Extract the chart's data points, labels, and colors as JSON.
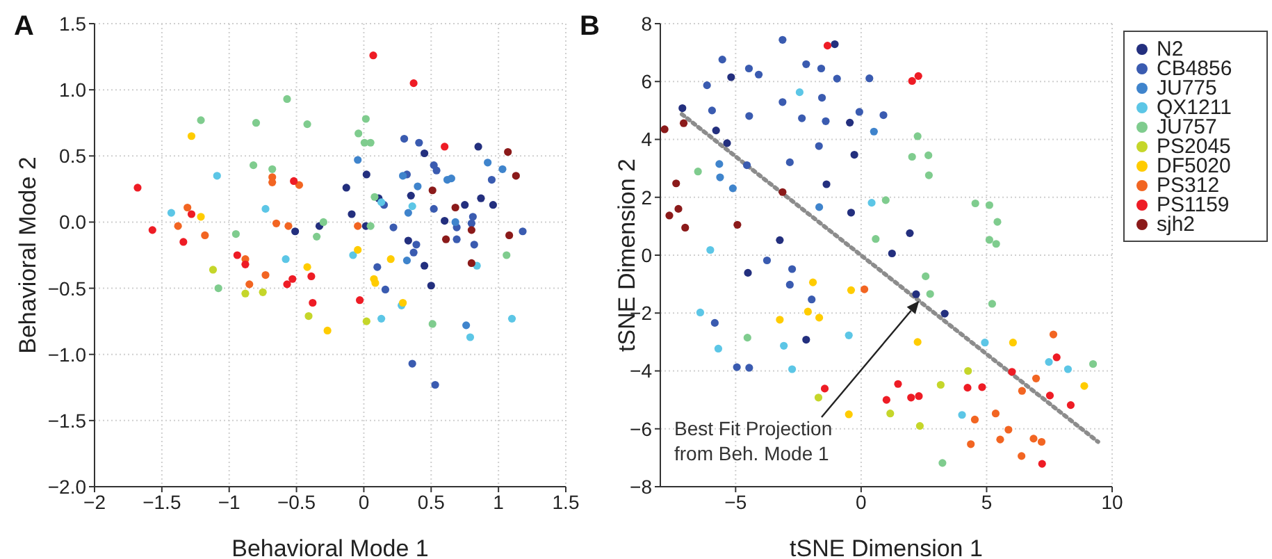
{
  "chart_data": [
    {
      "type": "scatter",
      "title": "A",
      "xlabel": "Behavioral Mode 1",
      "ylabel": "Behavioral Mode 2",
      "xlim": [
        -2,
        1.5
      ],
      "ylim": [
        -2,
        1.5
      ],
      "xticks": [
        {
          "value": -2,
          "label": "−2"
        },
        {
          "value": -1.5,
          "label": "−1.5"
        },
        {
          "value": -1,
          "label": "−1"
        },
        {
          "value": -0.5,
          "label": "−0.5"
        },
        0,
        0.5,
        1,
        1.5
      ],
      "yticks": [
        {
          "value": -2,
          "label": "−2.0"
        },
        {
          "value": -1.5,
          "label": "−1.5"
        },
        {
          "value": -1,
          "label": "−1.0"
        },
        {
          "value": -0.5,
          "label": "−0.5"
        },
        {
          "value": 0,
          "label": "0.0"
        },
        0.5,
        {
          "value": 1,
          "label": "1.0"
        },
        1.5
      ],
      "grid": true,
      "marker": "circle",
      "series": [
        {
          "color": "#232f7e",
          "x": [
            -0.13,
            -0.09,
            0.02,
            -0.51,
            -0.33,
            0.015,
            0.11,
            0.35,
            0.45,
            0.33,
            0.45,
            0.5,
            0.6,
            0.75,
            0.85,
            0.87,
            0.96
          ],
          "values": [
            0.26,
            0.06,
            0.36,
            -0.07,
            -0.03,
            -0.03,
            0.18,
            0.2,
            0.52,
            -0.14,
            -0.33,
            -0.48,
            0.01,
            0.13,
            0.57,
            0.18,
            0.13
          ]
        },
        {
          "color": "#3a5bb0",
          "x": [
            0.3,
            0.41,
            0.52,
            0.54,
            0.32,
            0.52,
            0.15,
            0.22,
            0.39,
            0.37,
            0.1,
            0.16,
            0.69,
            0.69,
            0.81,
            0.8,
            0.82,
            0.95,
            1.18,
            0.36,
            0.53
          ],
          "values": [
            0.63,
            0.6,
            0.43,
            0.39,
            0.36,
            0.1,
            0.13,
            -0.04,
            -0.17,
            -0.23,
            -0.34,
            -0.51,
            -0.04,
            -0.13,
            0.04,
            -0.01,
            -0.17,
            0.32,
            -0.07,
            -1.07,
            -1.23
          ]
        },
        {
          "color": "#3f84cc",
          "x": [
            -0.045,
            0.92,
            1.03,
            0.62,
            0.65,
            0.29,
            0.4,
            0.33,
            0.68,
            0.32,
            0.76
          ],
          "values": [
            0.47,
            0.45,
            0.4,
            0.32,
            0.33,
            0.35,
            0.27,
            0.07,
            0,
            -0.29,
            -0.78
          ]
        },
        {
          "color": "#5cc6e6",
          "x": [
            -1.09,
            -1.43,
            -0.73,
            -0.58,
            -0.08,
            0.13,
            0.36,
            0.28,
            0.13,
            0.79,
            0.84,
            1.1
          ],
          "values": [
            0.35,
            0.07,
            0.1,
            -0.28,
            -0.25,
            0.15,
            0.12,
            -0.63,
            -0.73,
            -0.87,
            -0.33,
            -0.73
          ]
        },
        {
          "color": "#7fcc8e",
          "x": [
            -1.21,
            -0.8,
            -0.57,
            -0.42,
            -0.82,
            -0.68,
            -0.95,
            -1.08,
            -0.3,
            -0.35,
            -0.04,
            0.015,
            0.005,
            0.05,
            0.08,
            0.05,
            0.51,
            1.06
          ],
          "values": [
            0.77,
            0.75,
            0.93,
            0.74,
            0.43,
            0.4,
            -0.09,
            -0.5,
            0,
            -0.11,
            0.67,
            0.78,
            0.6,
            0.6,
            0.19,
            -0.03,
            -0.77,
            -0.25
          ]
        },
        {
          "color": "#c5d62a",
          "x": [
            -1.12,
            -0.88,
            -0.75,
            -0.41,
            0.02
          ],
          "values": [
            -0.36,
            -0.54,
            -0.53,
            -0.71,
            -0.75
          ]
        },
        {
          "color": "#ffcc00",
          "x": [
            -1.28,
            -1.21,
            -0.42,
            -0.27,
            -0.045,
            0.075,
            0.085,
            0.2,
            0.29
          ],
          "values": [
            0.65,
            0.04,
            -0.34,
            -0.82,
            -0.21,
            -0.43,
            -0.46,
            -0.28,
            -0.61
          ]
        },
        {
          "color": "#f26522",
          "x": [
            -1.31,
            -1.38,
            -1.18,
            -0.68,
            -0.68,
            -0.48,
            -0.65,
            -0.56,
            -0.88,
            -0.85,
            -0.73,
            -0.045
          ],
          "values": [
            0.11,
            -0.03,
            -0.1,
            0.34,
            0.3,
            0.28,
            -0.01,
            -0.03,
            -0.28,
            -0.47,
            -0.4,
            -0.03
          ]
        },
        {
          "color": "#ee1c25",
          "x": [
            0.07,
            0.37,
            0.6,
            -1.68,
            -1.57,
            -1.34,
            -1.28,
            -0.52,
            -0.94,
            -0.88,
            -0.57,
            -0.53,
            -0.39,
            -0.38,
            -0.03
          ],
          "values": [
            1.26,
            1.05,
            0.57,
            0.26,
            -0.06,
            -0.15,
            0.06,
            0.31,
            -0.25,
            -0.32,
            -0.47,
            -0.43,
            -0.41,
            -0.61,
            -0.59
          ]
        },
        {
          "color": "#8b1a1a",
          "x": [
            1.07,
            1.13,
            0.51,
            0.68,
            0.61,
            0.8,
            0.8,
            1.08
          ],
          "values": [
            0.53,
            0.35,
            0.24,
            0.11,
            -0.13,
            -0.06,
            -0.31,
            -0.1
          ]
        }
      ]
    },
    {
      "type": "scatter",
      "title": "B",
      "xlabel": "tSNE Dimension 1",
      "ylabel": "tSNE Dimension 2",
      "xlim": [
        -8,
        10
      ],
      "ylim": [
        -8,
        8
      ],
      "xticks": [
        {
          "value": -5,
          "label": "−5"
        },
        0,
        5,
        10
      ],
      "yticks": [
        {
          "value": -8,
          "label": "−8"
        },
        {
          "value": -6,
          "label": "−6"
        },
        {
          "value": -4,
          "label": "−4"
        },
        {
          "value": -2,
          "label": "−2"
        },
        0,
        2,
        4,
        6,
        8
      ],
      "grid": true,
      "marker": "circle",
      "legend": "right",
      "annotations": [
        "Best Fit Projection\nfrom Beh. Mode 1"
      ],
      "series": [
        {
          "type": "line",
          "color": "#8c8c8c",
          "line_style": "dotted",
          "marker": "none",
          "x": [
            -7.14,
            9.44
          ],
          "values": [
            4.87,
            -6.45
          ]
        },
        {
          "name": "N2",
          "color": "#232f7e",
          "x": [
            -7.12,
            -5.18,
            -5.34,
            -5.78,
            -0.45,
            -0.27,
            -1.38,
            -0.4,
            -3.24,
            1.23,
            1.94,
            2.19,
            3.33,
            -4.51,
            -2.19,
            -1.05
          ],
          "values": [
            5.08,
            6.15,
            3.87,
            4.31,
            4.58,
            3.47,
            2.45,
            1.47,
            0.52,
            0.06,
            0.76,
            -1.35,
            -2.02,
            -0.61,
            -2.92,
            7.29
          ]
        },
        {
          "name": "CB4856",
          "color": "#3a5bb0",
          "x": [
            -6.14,
            -5.94,
            -5.53,
            -4.47,
            -4.08,
            -4.46,
            -4.55,
            -3.13,
            -3.13,
            -2.19,
            -1.59,
            -2.36,
            -1.56,
            -1.41,
            -0.96,
            -1.68,
            -2.84,
            -0.07,
            0.33,
            0.89,
            -3.75,
            -2.75,
            -2.84,
            -1.97,
            -5.83,
            -4.95,
            -4.46
          ],
          "values": [
            5.87,
            5,
            6.76,
            6.45,
            6.24,
            4.81,
            3.11,
            7.44,
            5.29,
            6.6,
            6.45,
            4.73,
            5.44,
            4.63,
            6.1,
            3.77,
            3.21,
            4.95,
            6.11,
            4.84,
            -0.18,
            -0.48,
            -1.02,
            -1.53,
            -2.34,
            -3.87,
            -3.89
          ]
        },
        {
          "name": "JU775",
          "color": "#3f84cc",
          "x": [
            -5.65,
            -5.62,
            -5.11,
            -1.67,
            0.51
          ],
          "values": [
            3.15,
            2.69,
            2.31,
            1.66,
            4.27
          ]
        },
        {
          "name": "QX1211",
          "color": "#5cc6e6",
          "x": [
            -2.45,
            -6.01,
            -6.41,
            -5.69,
            -3.08,
            -2.75,
            -0.49,
            0.42,
            4.02,
            4.93,
            7.48,
            8.24
          ],
          "values": [
            5.63,
            0.18,
            -1.98,
            -3.23,
            -3.13,
            -3.94,
            -2.77,
            1.81,
            -5.52,
            -3.02,
            -3.69,
            -3.94
          ]
        },
        {
          "name": "JU757",
          "color": "#7fcc8e",
          "x": [
            -6.5,
            -4.53,
            0.98,
            0.58,
            2.25,
            2.03,
            2.68,
            2.7,
            2.57,
            2.75,
            4.55,
            5.11,
            5.43,
            5.11,
            5.38,
            5.22,
            3.24,
            9.24
          ],
          "values": [
            2.89,
            -2.85,
            1.9,
            0.56,
            4.11,
            3.4,
            3.45,
            2.76,
            -0.73,
            -1.34,
            1.79,
            1.73,
            1.15,
            0.53,
            0.39,
            -1.68,
            -7.18,
            -3.76
          ]
        },
        {
          "name": "PS2045",
          "color": "#c5d62a",
          "x": [
            -1.7,
            1.16,
            2.34,
            3.17,
            4.26
          ],
          "values": [
            -4.92,
            -5.47,
            -5.9,
            -4.48,
            -4
          ]
        },
        {
          "name": "DF5020",
          "color": "#ffcc00",
          "x": [
            -1.92,
            -3.24,
            -2.12,
            -1.67,
            -0.4,
            -0.49,
            2.25,
            6.05,
            8.89
          ],
          "values": [
            -0.94,
            -2.23,
            -1.95,
            -2.16,
            -1.21,
            -5.5,
            -3,
            -3.02,
            -4.52
          ]
        },
        {
          "name": "PS312",
          "color": "#f26522",
          "x": [
            0.13,
            4.53,
            4.37,
            5.36,
            5.54,
            5.87,
            6.39,
            6.41,
            6.97,
            6.87,
            7.19,
            7.66
          ],
          "values": [
            -1.18,
            -5.68,
            -6.53,
            -5.47,
            -6.37,
            -6.03,
            -6.94,
            -4.69,
            -4.26,
            -6.34,
            -6.45,
            -2.74
          ]
        },
        {
          "name": "PS1159",
          "color": "#ee1c25",
          "x": [
            -1.34,
            2.03,
            2.28,
            -1.45,
            1.01,
            1.47,
            1.99,
            2.3,
            4.24,
            4.82,
            6.01,
            7.52,
            7.79,
            8.35,
            7.21
          ],
          "values": [
            7.24,
            6.02,
            6.19,
            -4.61,
            -5,
            -4.45,
            -4.92,
            -4.87,
            -4.58,
            -4.56,
            -4.03,
            -4.85,
            -3.53,
            -5.18,
            -7.21
          ]
        },
        {
          "name": "sjh2",
          "color": "#8b1a1a",
          "x": [
            -7.83,
            -7.07,
            -7.37,
            -7.64,
            -7.28,
            -7.01,
            -4.93,
            -3.13
          ],
          "values": [
            4.35,
            4.56,
            2.48,
            1.37,
            1.6,
            0.95,
            1.05,
            2.18
          ]
        }
      ]
    }
  ]
}
